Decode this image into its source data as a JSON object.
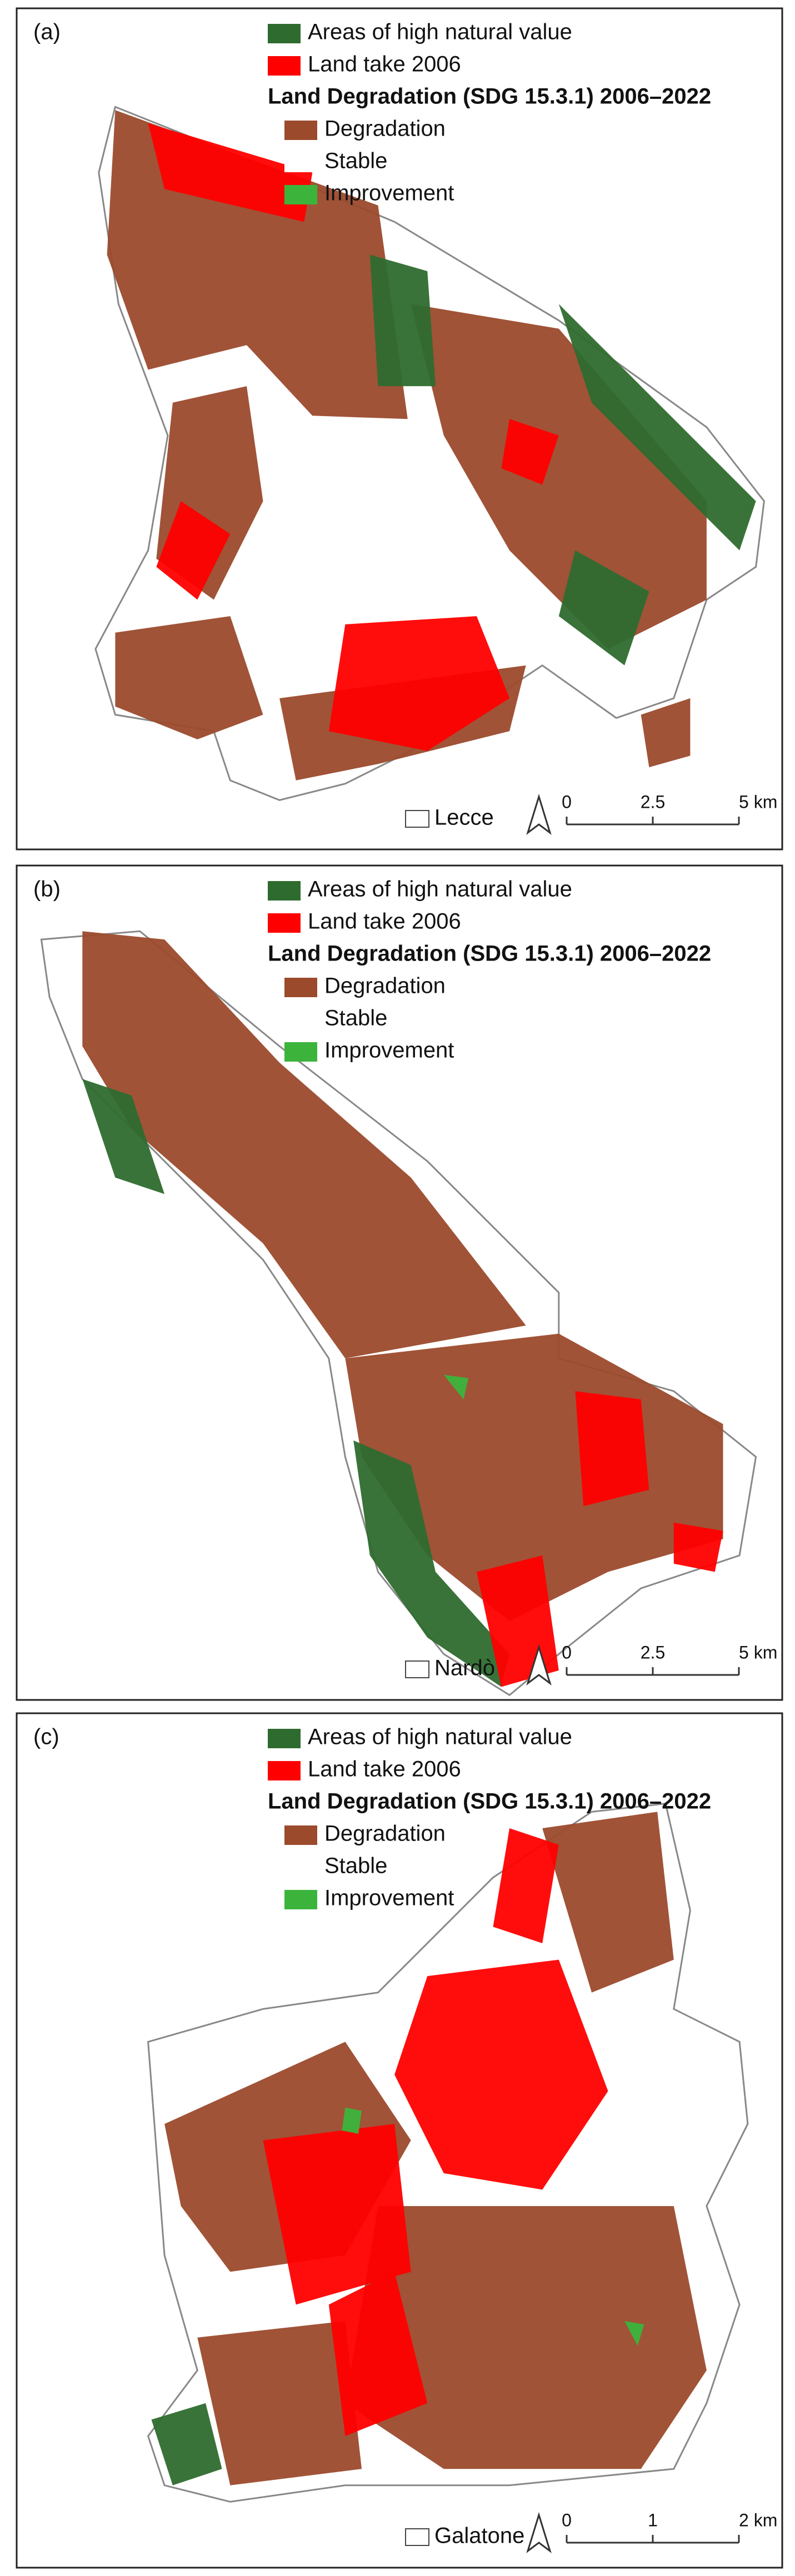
{
  "panels": [
    {
      "label": "(a)",
      "legend": {
        "items": [
          {
            "label": "Areas of high natural value",
            "color": "#2e6b2e"
          },
          {
            "label": "Land take 2006",
            "color": "#ff0000"
          }
        ],
        "title": "Land Degradation (SDG 15.3.1) 2006–2022",
        "classes": [
          {
            "label": "Degradation",
            "color": "#9b4a2c"
          },
          {
            "label": "Stable",
            "color": "#ffffff"
          },
          {
            "label": "Improvement",
            "color": "#3cb43c"
          }
        ]
      },
      "place": "Lecce",
      "scale": [
        "0",
        "2.5",
        "5 km"
      ]
    },
    {
      "label": "(b)",
      "legend": {
        "items": [
          {
            "label": "Areas of high natural value",
            "color": "#2e6b2e"
          },
          {
            "label": "Land take 2006",
            "color": "#ff0000"
          }
        ],
        "title": "Land Degradation (SDG 15.3.1) 2006–2022",
        "classes": [
          {
            "label": "Degradation",
            "color": "#9b4a2c"
          },
          {
            "label": "Stable",
            "color": "#ffffff"
          },
          {
            "label": "Improvement",
            "color": "#3cb43c"
          }
        ]
      },
      "place": "Nardò",
      "scale": [
        "0",
        "2.5",
        "5 km"
      ]
    },
    {
      "label": "(c)",
      "legend": {
        "items": [
          {
            "label": "Areas of high natural value",
            "color": "#2e6b2e"
          },
          {
            "label": "Land take 2006",
            "color": "#ff0000"
          }
        ],
        "title": "Land Degradation (SDG 15.3.1) 2006–2022",
        "classes": [
          {
            "label": "Degradation",
            "color": "#9b4a2c"
          },
          {
            "label": "Stable",
            "color": "#ffffff"
          },
          {
            "label": "Improvement",
            "color": "#3cb43c"
          }
        ]
      },
      "place": "Galatone",
      "scale": [
        "0",
        "1",
        "2 km"
      ]
    }
  ]
}
